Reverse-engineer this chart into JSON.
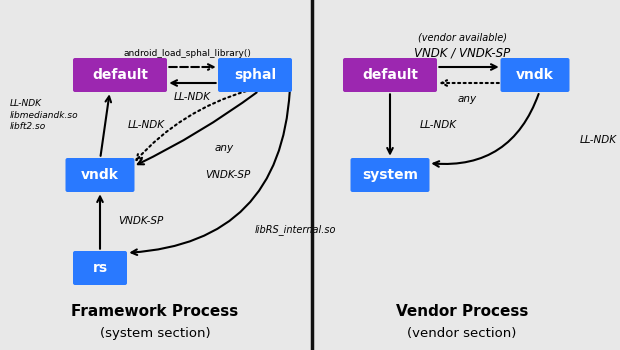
{
  "bg_color": "#e8e8e8",
  "divider_color": "#111111",
  "box_blue": "#2979ff",
  "box_purple": "#9c27b0",
  "box_text_color": "#ffffff",
  "left_title": "Framework Process",
  "left_subtitle": "(system section)",
  "right_title": "Vendor Process",
  "right_subtitle": "(vendor section)"
}
